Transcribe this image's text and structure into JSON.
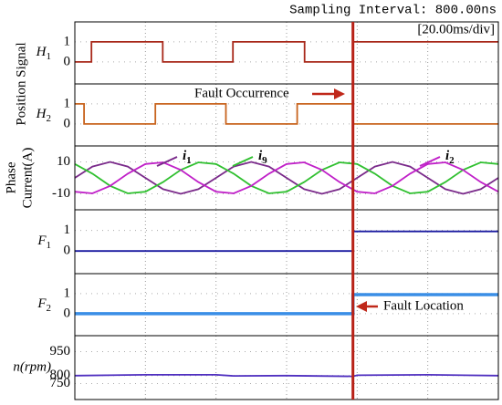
{
  "header": {
    "sampling": "Sampling Interval:  800.00ns",
    "time_scale": "[20.00ms/div]"
  },
  "fault_time": 78.8,
  "chart_data": [
    {
      "type": "line",
      "group_label": "Position Signal",
      "ylabel": "H1",
      "xlim": [
        0,
        120
      ],
      "xticks": [
        0,
        20,
        40,
        60,
        80,
        100,
        120
      ],
      "ylim": [
        -1.1,
        2
      ],
      "yticks": [
        0,
        1
      ],
      "x": [
        0,
        4.7,
        4.7,
        24.9,
        24.9,
        44.8,
        44.8,
        65.1,
        65.1,
        78.8,
        78.8,
        120
      ],
      "series": [
        {
          "color": "#a8281a",
          "values": [
            0,
            0,
            1,
            1,
            0,
            0,
            1,
            1,
            0,
            0,
            1,
            1
          ]
        }
      ]
    },
    {
      "type": "line",
      "ylabel": "H2",
      "annotation": "Fault Occurrence",
      "xlim": [
        0,
        120
      ],
      "xticks": [
        0,
        20,
        40,
        60,
        80,
        100,
        120
      ],
      "ylim": [
        -1.1,
        2
      ],
      "yticks": [
        0,
        1
      ],
      "x": [
        0,
        2.6,
        2.6,
        22.8,
        22.8,
        42.8,
        42.8,
        63,
        63,
        78.8,
        78.8,
        120
      ],
      "series": [
        {
          "color": "#c8641e",
          "values": [
            1,
            1,
            0,
            0,
            1,
            1,
            0,
            0,
            1,
            1,
            0,
            0
          ]
        }
      ]
    },
    {
      "type": "line",
      "ylabel": [
        "Phase",
        "Current(A)"
      ],
      "xlim": [
        0,
        120
      ],
      "xticks": [
        0,
        20,
        40,
        60,
        80,
        100,
        120
      ],
      "ylim": [
        -20,
        20
      ],
      "yticks": [
        -10,
        10
      ],
      "x": [
        0,
        5,
        10,
        15,
        20,
        25,
        30,
        35,
        40,
        45,
        50,
        55,
        60,
        65,
        70,
        75,
        80,
        85,
        90,
        95,
        100,
        105,
        110,
        115,
        120
      ],
      "series": [
        {
          "name": "i1",
          "color": "#7a2a8a",
          "values": [
            0,
            7.1,
            10,
            7.1,
            0,
            -7.1,
            -10,
            -7.1,
            0,
            7.1,
            10,
            7.1,
            0,
            -7.1,
            -10,
            -7.1,
            0,
            7.1,
            10,
            7.1,
            0,
            -7.1,
            -10,
            -7.1,
            0
          ]
        },
        {
          "name": "i9",
          "color": "#30c030",
          "values": [
            8.7,
            2.6,
            -5,
            -9.7,
            -8.7,
            -2.6,
            5,
            9.7,
            8.7,
            2.6,
            -5,
            -9.7,
            -8.7,
            -2.6,
            5,
            9.7,
            8.7,
            2.6,
            -5,
            -9.7,
            -8.7,
            -2.6,
            5,
            9.7,
            8.7
          ]
        },
        {
          "name": "i2",
          "color": "#c020c8",
          "values": [
            -8.7,
            -9.7,
            -5,
            2.6,
            8.7,
            9.7,
            5,
            -2.6,
            -8.7,
            -9.7,
            -5,
            2.6,
            8.7,
            9.7,
            5,
            -2.6,
            -8.7,
            -9.7,
            -5,
            2.6,
            8.7,
            9.7,
            5,
            -2.6,
            -8.7
          ]
        }
      ]
    },
    {
      "type": "line",
      "ylabel": "F1",
      "xlim": [
        0,
        120
      ],
      "xticks": [
        0,
        20,
        40,
        60,
        80,
        100,
        120
      ],
      "ylim": [
        -1.1,
        2
      ],
      "yticks": [
        0,
        1
      ],
      "x": [
        0,
        78.8,
        78.8,
        120
      ],
      "series": [
        {
          "color": "#1a1aa0",
          "values": [
            0,
            0,
            0.95,
            0.95
          ]
        }
      ]
    },
    {
      "type": "line",
      "ylabel": "F2",
      "annotation": "Fault Location",
      "xlim": [
        0,
        120
      ],
      "xticks": [
        0,
        20,
        40,
        60,
        80,
        100,
        120
      ],
      "ylim": [
        -1.1,
        2
      ],
      "yticks": [
        0,
        1
      ],
      "x": [
        0,
        78.8,
        78.8,
        120
      ],
      "series": [
        {
          "color": "#3a8ee6",
          "values": [
            0,
            0,
            0.95,
            0.95
          ]
        }
      ]
    },
    {
      "type": "line",
      "ylabel": "n(rpm)",
      "xlim": [
        0,
        120
      ],
      "xticks": [
        0,
        20,
        40,
        60,
        80,
        100,
        120
      ],
      "ylim": [
        650,
        1050
      ],
      "yticks": [
        750,
        800,
        950
      ],
      "x": [
        0,
        20,
        40,
        45,
        60,
        78.8,
        80,
        100,
        120
      ],
      "series": [
        {
          "color": "#5030c0",
          "values": [
            800,
            805,
            805,
            798,
            800,
            795,
            802,
            805,
            800
          ]
        }
      ]
    }
  ]
}
